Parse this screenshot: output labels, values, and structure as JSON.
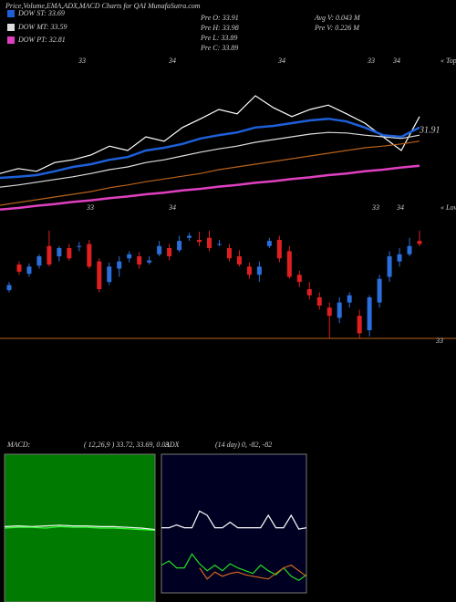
{
  "chart_data": [
    {
      "type": "line",
      "title": "Price,Volume,EMA,ADX,MACD Charts for QAI MunafaSutra.com",
      "annotations": [
        "Pre O: 33.91",
        "Pre H: 33.98",
        "Pre L: 33.89",
        "Pre C: 33.89",
        "Avg V: 0.043 M",
        "Pre V: 0.226 M",
        "33",
        "34",
        "34",
        "33",
        "34",
        "« Tops",
        "31.91"
      ],
      "ylim": [
        31.5,
        34.5
      ],
      "series": [
        {
          "color": "#ffffff",
          "values": [
            32.33,
            32.42,
            32.37,
            32.53,
            32.58,
            32.67,
            32.83,
            32.75,
            33.0,
            32.92,
            33.17,
            33.33,
            33.5,
            33.42,
            33.75,
            33.53,
            33.37,
            33.5,
            33.58,
            33.42,
            33.25,
            33.0,
            32.75,
            33.37
          ]
        },
        {
          "name": "DOW MT: 33.59",
          "color": "#dddddd",
          "values": [
            32.08,
            32.12,
            32.17,
            32.22,
            32.27,
            32.33,
            32.4,
            32.45,
            32.53,
            32.58,
            32.65,
            32.72,
            32.78,
            32.83,
            32.9,
            32.95,
            33.0,
            33.05,
            33.08,
            33.07,
            33.03,
            33.0,
            32.97,
            33.03
          ]
        },
        {
          "color": "#b8621b",
          "values": [
            31.75,
            31.8,
            31.85,
            31.9,
            31.95,
            32.0,
            32.07,
            32.12,
            32.18,
            32.23,
            32.28,
            32.33,
            32.4,
            32.45,
            32.5,
            32.55,
            32.6,
            32.65,
            32.7,
            32.75,
            32.8,
            32.83,
            32.87,
            32.92
          ]
        },
        {
          "name": "DOW PT: 32.81",
          "color": "#e040c0",
          "values": [
            31.67,
            31.7,
            31.74,
            31.77,
            31.81,
            31.84,
            31.88,
            31.91,
            31.95,
            31.98,
            32.02,
            32.05,
            32.09,
            32.12,
            32.16,
            32.19,
            32.23,
            32.26,
            32.3,
            32.33,
            32.37,
            32.4,
            32.44,
            32.47
          ]
        },
        {
          "name": "DOW ST: 33.69",
          "color": "#1e5fd8",
          "values": [
            32.25,
            32.27,
            32.3,
            32.37,
            32.45,
            32.5,
            32.58,
            32.63,
            32.75,
            32.8,
            32.87,
            32.97,
            33.03,
            33.08,
            33.17,
            33.2,
            33.25,
            33.3,
            33.33,
            33.28,
            33.17,
            33.03,
            33.0,
            33.17
          ]
        }
      ]
    },
    {
      "type": "candlestick",
      "annotations": [
        "33",
        "34",
        "33",
        "34",
        "« Lows"
      ],
      "ylim": [
        33,
        34.2
      ],
      "yticks": [
        33
      ],
      "up_color": "#2a6fdb",
      "down_color": "#e02020",
      "grid_color": "#b8621b",
      "open": [
        33.47,
        33.72,
        33.63,
        33.71,
        33.9,
        33.8,
        33.88,
        33.9,
        33.92,
        33.75,
        33.55,
        33.68,
        33.78,
        33.8,
        33.74,
        33.82,
        33.88,
        33.86,
        33.98,
        33.96,
        33.98,
        33.92,
        33.88,
        33.8,
        33.7,
        33.62,
        33.9,
        33.96,
        33.85,
        33.62,
        33.48,
        33.4,
        33.3,
        33.2,
        33.35,
        33.22,
        33.08,
        33.35,
        33.6,
        33.75,
        33.82,
        33.95
      ],
      "close": [
        33.52,
        33.65,
        33.7,
        33.8,
        33.72,
        33.88,
        33.78,
        33.9,
        33.7,
        33.48,
        33.7,
        33.75,
        33.82,
        33.72,
        33.76,
        33.9,
        33.8,
        33.95,
        34.0,
        33.94,
        33.88,
        33.92,
        33.78,
        33.72,
        33.62,
        33.7,
        33.95,
        33.78,
        33.6,
        33.55,
        33.42,
        33.32,
        33.22,
        33.35,
        33.42,
        33.05,
        33.4,
        33.58,
        33.8,
        33.82,
        33.9,
        33.92
      ],
      "high": [
        33.55,
        33.75,
        33.73,
        33.82,
        34.05,
        33.9,
        33.92,
        33.94,
        33.96,
        33.78,
        33.74,
        33.8,
        33.85,
        33.84,
        33.8,
        33.95,
        33.92,
        34.0,
        34.03,
        34.04,
        34.05,
        33.96,
        33.92,
        33.86,
        33.74,
        33.75,
        33.98,
        34.0,
        33.9,
        33.66,
        33.55,
        33.45,
        33.35,
        33.4,
        33.45,
        33.28,
        33.42,
        33.62,
        33.85,
        33.88,
        33.98,
        34.05
      ],
      "low": [
        33.45,
        33.62,
        33.6,
        33.68,
        33.7,
        33.75,
        33.76,
        33.85,
        33.68,
        33.45,
        33.52,
        33.6,
        33.74,
        33.68,
        33.72,
        33.8,
        33.76,
        33.84,
        33.95,
        33.9,
        33.85,
        33.9,
        33.75,
        33.7,
        33.58,
        33.55,
        33.88,
        33.74,
        33.58,
        33.5,
        33.38,
        33.28,
        33.0,
        33.15,
        33.3,
        33.0,
        33.02,
        33.3,
        33.55,
        33.7,
        33.8,
        33.9
      ]
    },
    {
      "type": "line",
      "title": "MACD:",
      "subtitle": "( 12,26,9 ) 33.72, 33.69, 0.03",
      "background": "#007a00",
      "ylim": [
        -1,
        1
      ],
      "series": [
        {
          "color": "#ffffff",
          "values": [
            0.02,
            0.03,
            0.02,
            0.03,
            0.04,
            0.03,
            0.03,
            0.02,
            0.02,
            0.01,
            0.0,
            -0.02
          ]
        },
        {
          "color": "#33ff33",
          "values": [
            0.0,
            0.01,
            0.01,
            0.0,
            0.02,
            0.01,
            0.01,
            0.0,
            0.0,
            -0.01,
            -0.02,
            -0.03
          ]
        }
      ]
    },
    {
      "type": "line",
      "title": "ADX",
      "subtitle": "(14 day) 0, -82, -82",
      "background": "#000022",
      "ylim": [
        0,
        100
      ],
      "series": [
        {
          "color": "#ffffff",
          "values": [
            47,
            47,
            49,
            47,
            47,
            59,
            56,
            47,
            47,
            51,
            47,
            47,
            47,
            47,
            56,
            47,
            47,
            56,
            46,
            47
          ]
        },
        {
          "color": "#22dd22",
          "values": [
            20,
            23,
            18,
            18,
            28,
            21,
            16,
            20,
            16,
            21,
            18,
            16,
            14,
            20,
            16,
            13,
            18,
            12,
            9,
            13
          ]
        },
        {
          "color": "#d2691e",
          "values": [
            null,
            null,
            null,
            null,
            null,
            18,
            10,
            15,
            12,
            14,
            15,
            13,
            12,
            11,
            10,
            14,
            18,
            20,
            16,
            12
          ]
        }
      ]
    }
  ]
}
